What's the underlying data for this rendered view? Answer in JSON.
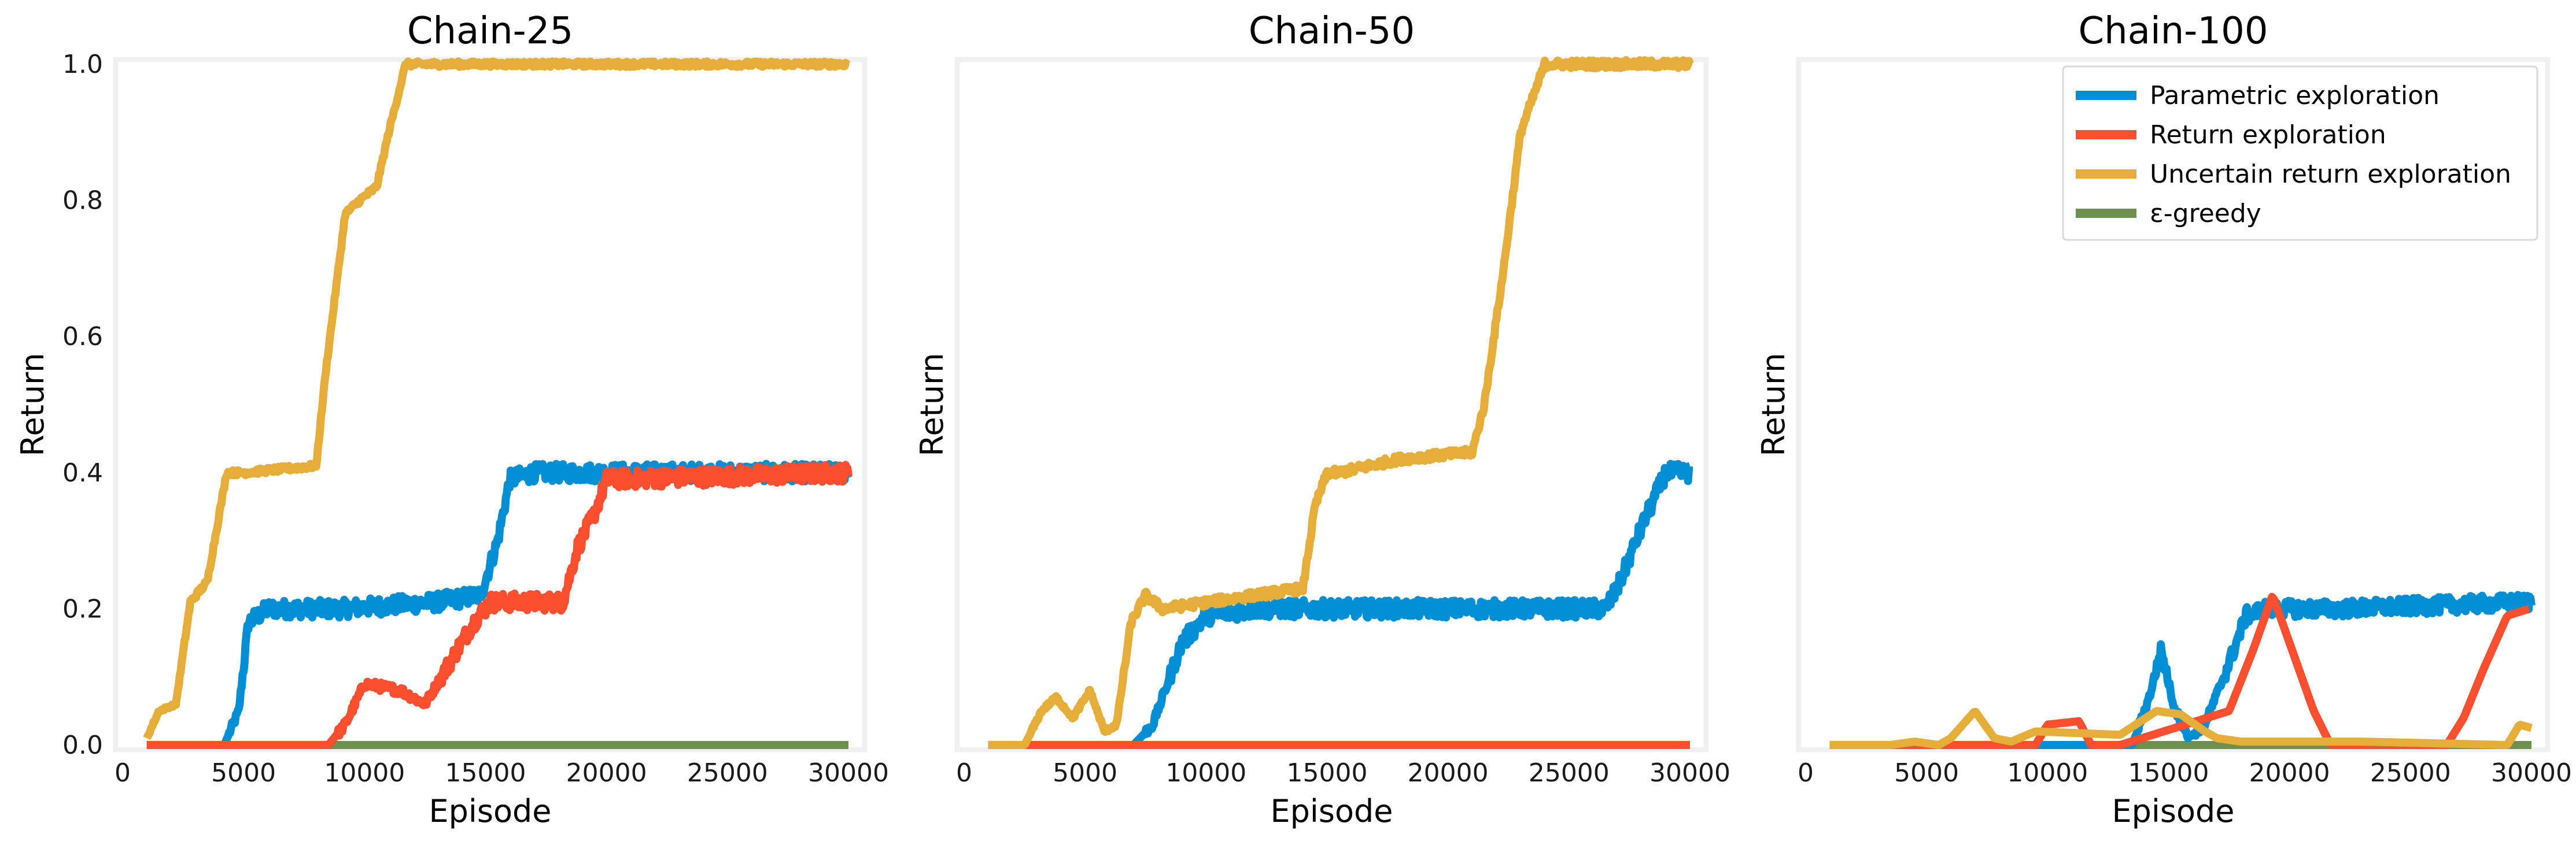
{
  "colors": {
    "parametric": "#008fd5",
    "return": "#fc4f30",
    "uncertain": "#e5ae38",
    "egreedy": "#6d904f",
    "frame": "#f0f0f0"
  },
  "legend": {
    "placement": "top-right of third panel",
    "entries": [
      {
        "label": "Parametric exploration",
        "color_key": "parametric"
      },
      {
        "label": "Return exploration",
        "color_key": "return"
      },
      {
        "label": "Uncertain return exploration",
        "color_key": "uncertain"
      },
      {
        "label": "ε-greedy",
        "color_key": "egreedy"
      }
    ]
  },
  "chart_data": [
    {
      "type": "line",
      "title": "Chain-25",
      "xlabel": "Episode",
      "ylabel": "Return",
      "xlim": [
        0,
        30000
      ],
      "ylim": [
        0,
        1.0
      ],
      "grid": false,
      "xticks": [
        "0",
        "5000",
        "10000",
        "15000",
        "20000",
        "25000",
        "30000"
      ],
      "yticks": [
        "0.0",
        "0.2",
        "0.4",
        "0.6",
        "0.8",
        "1.0"
      ],
      "show_yticks": true,
      "series": [
        {
          "name": "Parametric exploration",
          "color_key": "parametric",
          "noise": 0.013,
          "x": [
            1000,
            3000,
            4200,
            4800,
            5200,
            6000,
            9000,
            13000,
            14800,
            15500,
            16000,
            17000,
            30000
          ],
          "y": [
            0,
            0,
            0,
            0.05,
            0.18,
            0.2,
            0.2,
            0.21,
            0.22,
            0.3,
            0.39,
            0.4,
            0.4
          ]
        },
        {
          "name": "Return exploration",
          "color_key": "return",
          "noise": 0.013,
          "x": [
            1000,
            8500,
            9200,
            10000,
            11500,
            12500,
            14500,
            15200,
            18200,
            18800,
            19500,
            20000,
            30000
          ],
          "y": [
            0,
            0,
            0.03,
            0.09,
            0.08,
            0.06,
            0.18,
            0.21,
            0.21,
            0.29,
            0.34,
            0.39,
            0.4
          ]
        },
        {
          "name": "Uncertain return exploration",
          "color_key": "uncertain",
          "noise": 0.004,
          "x": [
            1000,
            1500,
            2200,
            2800,
            3500,
            4300,
            5000,
            8000,
            8400,
            9200,
            9800,
            10500,
            11000,
            11700,
            12000,
            30000
          ],
          "y": [
            0.01,
            0.05,
            0.06,
            0.21,
            0.24,
            0.4,
            0.4,
            0.41,
            0.55,
            0.78,
            0.8,
            0.82,
            0.9,
            1.0,
            1.0,
            1.0
          ]
        },
        {
          "name": "ε-greedy",
          "color_key": "egreedy",
          "noise": 0,
          "x": [
            1000,
            30000
          ],
          "y": [
            0,
            0
          ]
        }
      ]
    },
    {
      "type": "line",
      "title": "Chain-50",
      "xlabel": "Episode",
      "ylabel": "Return",
      "xlim": [
        0,
        30000
      ],
      "ylim": [
        0,
        1.0
      ],
      "grid": false,
      "xticks": [
        "0",
        "5000",
        "10000",
        "15000",
        "20000",
        "25000",
        "30000"
      ],
      "yticks": [],
      "show_yticks": false,
      "series": [
        {
          "name": "Parametric exploration",
          "color_key": "parametric",
          "noise": 0.013,
          "x": [
            1000,
            7000,
            7800,
            9000,
            10000,
            12000,
            14500,
            15000,
            20000,
            26500,
            27000,
            28000,
            29000,
            30000
          ],
          "y": [
            0,
            0,
            0.03,
            0.15,
            0.19,
            0.2,
            0.2,
            0.2,
            0.2,
            0.2,
            0.23,
            0.32,
            0.4,
            0.4
          ]
        },
        {
          "name": "Return exploration",
          "color_key": "return",
          "noise": 0,
          "x": [
            1000,
            30000
          ],
          "y": [
            0,
            0
          ]
        },
        {
          "name": "Uncertain return exploration",
          "color_key": "uncertain",
          "noise": 0.006,
          "x": [
            1000,
            2500,
            3200,
            3800,
            4500,
            5200,
            5800,
            6300,
            6900,
            7500,
            8200,
            12000,
            14000,
            14500,
            15000,
            15500,
            18000,
            21000,
            21500,
            22300,
            23000,
            24000,
            30000
          ],
          "y": [
            0,
            0,
            0.05,
            0.07,
            0.04,
            0.08,
            0.02,
            0.03,
            0.18,
            0.22,
            0.2,
            0.22,
            0.23,
            0.35,
            0.4,
            0.4,
            0.42,
            0.43,
            0.5,
            0.7,
            0.9,
            1.0,
            1.0
          ]
        },
        {
          "name": "ε-greedy",
          "color_key": "egreedy",
          "noise": 0,
          "x": [
            1000,
            30000
          ],
          "y": [
            0,
            0
          ]
        }
      ]
    },
    {
      "type": "line",
      "title": "Chain-100",
      "xlabel": "Episode",
      "ylabel": "Return",
      "xlim": [
        0,
        30000
      ],
      "ylim": [
        0,
        1.0
      ],
      "grid": false,
      "xticks": [
        "0",
        "5000",
        "10000",
        "15000",
        "20000",
        "25000",
        "30000"
      ],
      "yticks": [],
      "show_yticks": false,
      "series": [
        {
          "name": "Parametric exploration",
          "color_key": "parametric",
          "noise": 0.012,
          "x": [
            1000,
            13500,
            14200,
            14700,
            15200,
            15800,
            16500,
            17500,
            18200,
            19000,
            22000,
            30000
          ],
          "y": [
            0,
            0,
            0.07,
            0.14,
            0.06,
            0.01,
            0.03,
            0.12,
            0.19,
            0.2,
            0.2,
            0.21
          ]
        },
        {
          "name": "Return exploration",
          "color_key": "return",
          "noise": 0,
          "x": [
            1000,
            9500,
            10000,
            11300,
            11800,
            13000,
            17500,
            18500,
            19300,
            20000,
            21000,
            21700,
            26500,
            27200,
            28000,
            29000,
            29900
          ],
          "y": [
            0,
            0,
            0.03,
            0.035,
            0,
            0,
            0.05,
            0.14,
            0.22,
            0.15,
            0.05,
            0,
            0,
            0.04,
            0.11,
            0.19,
            0.2
          ]
        },
        {
          "name": "Uncertain return exploration",
          "color_key": "uncertain",
          "noise": 0,
          "x": [
            1000,
            3500,
            4500,
            5500,
            6000,
            7000,
            7800,
            8500,
            9500,
            13000,
            14500,
            15500,
            16500,
            17000,
            18000,
            23000,
            29000,
            29500,
            30000
          ],
          "y": [
            0,
            0,
            0.005,
            0,
            0.01,
            0.05,
            0.01,
            0.005,
            0.02,
            0.015,
            0.05,
            0.045,
            0.02,
            0.01,
            0.005,
            0.005,
            0.0,
            0.03,
            0.025
          ]
        },
        {
          "name": "ε-greedy",
          "color_key": "egreedy",
          "noise": 0,
          "x": [
            1000,
            30000
          ],
          "y": [
            0,
            0
          ]
        }
      ]
    }
  ]
}
